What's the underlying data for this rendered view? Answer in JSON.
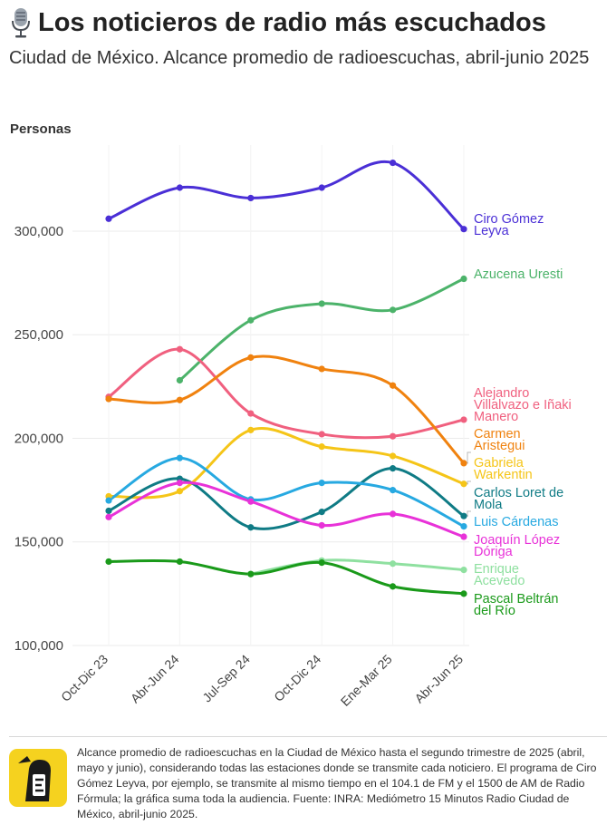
{
  "header": {
    "title": "Los noticieros de radio más escuchados",
    "subtitle": "Ciudad de México. Alcance promedio de radioescuchas, abril-junio 2025"
  },
  "footer": {
    "note": "Alcance promedio de radioescuchas en la Ciudad de México hasta el segundo trimestre de 2025 (abril, mayo y junio), considerando todas las estaciones donde se transmite cada noticiero. El programa de Ciro Gómez Leyva, por ejemplo, se transmite al mismo tiempo en el 104.1 de FM y el 1500 de AM de Radio Fórmula; la gráfica suma toda la audiencia. Fuente: INRA: Mediómetro 15 Minutos Radio Ciudad de México, abril-junio 2025."
  },
  "colors": {
    "background": "#ffffff",
    "grid": "#ebebeb",
    "text": "#222222",
    "axis_text": "#444444"
  },
  "icons": {
    "title": "microphone-icon",
    "footer": "logo-icon"
  },
  "chart_data": {
    "type": "line",
    "ylabel": "Personas",
    "xlabel": "",
    "categories": [
      "Oct-Dic 23",
      "Abr-Jun 24",
      "Jul-Sep 24",
      "Oct-Dic 24",
      "Ene-Mar 25",
      "Abr-Jun 25"
    ],
    "yticks": [
      100000,
      150000,
      200000,
      250000,
      300000
    ],
    "ytick_labels": [
      "100,000",
      "150,000",
      "200,000",
      "250,000",
      "300,000"
    ],
    "ylim": [
      100000,
      335000
    ],
    "grid": true,
    "legend": "direct labels at line ends",
    "series": [
      {
        "name": "Ciro Gómez Leyva",
        "label_lines": [
          "Ciro Gómez",
          "Leyva"
        ],
        "color": "#4a2fd6",
        "values": [
          306000,
          321000,
          316000,
          321000,
          333000,
          301000
        ]
      },
      {
        "name": "Azucena Uresti",
        "label_lines": [
          "Azucena Uresti"
        ],
        "color": "#4cb36a",
        "values": [
          null,
          228000,
          257000,
          265000,
          262000,
          277000
        ]
      },
      {
        "name": "Alejandro Villalvazo e Iñaki Manero",
        "label_lines": [
          "Alejandro",
          "Villalvazo e Iñaki",
          "Manero"
        ],
        "color": "#f0607f",
        "values": [
          220000,
          243000,
          212000,
          202000,
          201000,
          209000
        ]
      },
      {
        "name": "Carmen Aristegui",
        "label_lines": [
          "Carmen",
          "Aristegui"
        ],
        "color": "#f0820f",
        "values": [
          219000,
          218500,
          239000,
          233500,
          225500,
          188000
        ]
      },
      {
        "name": "Gabriela Warkentin",
        "label_lines": [
          "Gabriela",
          "Warkentin"
        ],
        "color": "#f5c518",
        "values": [
          172000,
          174500,
          204000,
          196000,
          191500,
          178000
        ]
      },
      {
        "name": "Carlos Loret de Mola",
        "label_lines": [
          "Carlos Loret de",
          "Mola"
        ],
        "color": "#0f7b85",
        "values": [
          165000,
          180500,
          157000,
          164500,
          185500,
          162500
        ]
      },
      {
        "name": "Luis Cárdenas",
        "label_lines": [
          "Luis Cárdenas"
        ],
        "color": "#27a9e1",
        "values": [
          170000,
          190500,
          170500,
          178500,
          175000,
          157500
        ]
      },
      {
        "name": "Joaquín López Dóriga",
        "label_lines": [
          "Joaquín López",
          "Dóriga"
        ],
        "color": "#e832d8",
        "values": [
          162000,
          178500,
          169500,
          158000,
          163500,
          152500
        ]
      },
      {
        "name": "Enrique Acevedo",
        "label_lines": [
          "Enrique",
          "Acevedo"
        ],
        "color": "#8fe0a0",
        "values": [
          null,
          null,
          134500,
          141000,
          139500,
          136500
        ]
      },
      {
        "name": "Pascal Beltrán del Río",
        "label_lines": [
          "Pascal Beltrán",
          "del Río"
        ],
        "color": "#1a9a1a",
        "values": [
          140500,
          140500,
          134500,
          140000,
          128500,
          125000
        ]
      }
    ]
  }
}
